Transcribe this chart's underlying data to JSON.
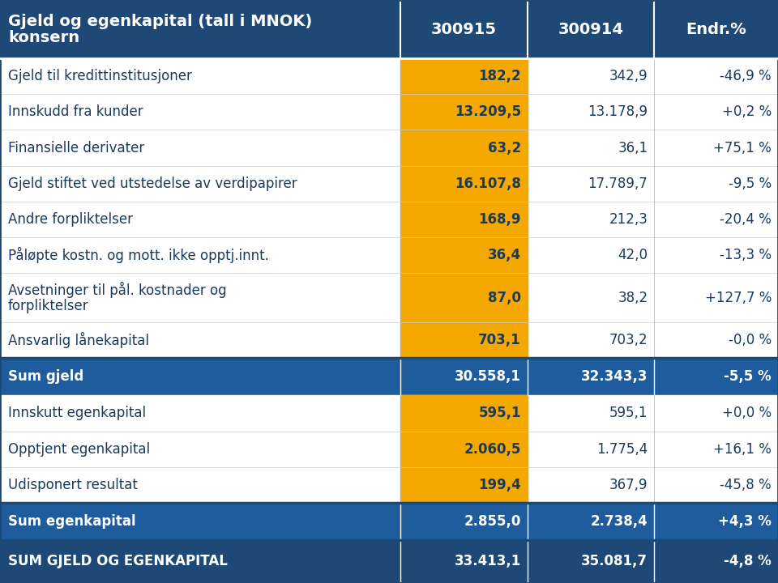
{
  "title_line1": "Gjeld og egenkapital (tall i MNOK)",
  "title_line2": "konsern",
  "col_headers": [
    "300915",
    "300914",
    "Endr.%"
  ],
  "rows": [
    {
      "label": "Gjeld til kredittinstitusjoner",
      "v1": "182,2",
      "v2": "342,9",
      "v3": "-46,9 %",
      "highlight": true,
      "summary": false,
      "bigsummary": false,
      "multiline": false
    },
    {
      "label": "Innskudd fra kunder",
      "v1": "13.209,5",
      "v2": "13.178,9",
      "v3": "+0,2 %",
      "highlight": true,
      "summary": false,
      "bigsummary": false,
      "multiline": false
    },
    {
      "label": "Finansielle derivater",
      "v1": "63,2",
      "v2": "36,1",
      "v3": "+75,1 %",
      "highlight": true,
      "summary": false,
      "bigsummary": false,
      "multiline": false
    },
    {
      "label": "Gjeld stiftet ved utstedelse av verdipapirer",
      "v1": "16.107,8",
      "v2": "17.789,7",
      "v3": "-9,5 %",
      "highlight": true,
      "summary": false,
      "bigsummary": false,
      "multiline": false
    },
    {
      "label": "Andre forpliktelser",
      "v1": "168,9",
      "v2": "212,3",
      "v3": "-20,4 %",
      "highlight": true,
      "summary": false,
      "bigsummary": false,
      "multiline": false
    },
    {
      "label": "Påløpte kostn. og mott. ikke opptj.innt.",
      "v1": "36,4",
      "v2": "42,0",
      "v3": "-13,3 %",
      "highlight": true,
      "summary": false,
      "bigsummary": false,
      "multiline": false
    },
    {
      "label": "Avsetninger til pål. kostnader og\nforpliktelser",
      "v1": "87,0",
      "v2": "38,2",
      "v3": "+127,7 %",
      "highlight": true,
      "summary": false,
      "bigsummary": false,
      "multiline": true
    },
    {
      "label": "Ansvarlig lånekapital",
      "v1": "703,1",
      "v2": "703,2",
      "v3": "-0,0 %",
      "highlight": true,
      "summary": false,
      "bigsummary": false,
      "multiline": false
    },
    {
      "label": "Sum gjeld",
      "v1": "30.558,1",
      "v2": "32.343,3",
      "v3": "-5,5 %",
      "highlight": false,
      "summary": true,
      "bigsummary": false,
      "multiline": false
    },
    {
      "label": "Innskutt egenkapital",
      "v1": "595,1",
      "v2": "595,1",
      "v3": "+0,0 %",
      "highlight": true,
      "summary": false,
      "bigsummary": false,
      "multiline": false
    },
    {
      "label": "Opptjent egenkapital",
      "v1": "2.060,5",
      "v2": "1.775,4",
      "v3": "+16,1 %",
      "highlight": true,
      "summary": false,
      "bigsummary": false,
      "multiline": false
    },
    {
      "label": "Udisponert resultat",
      "v1": "199,4",
      "v2": "367,9",
      "v3": "-45,8 %",
      "highlight": true,
      "summary": false,
      "bigsummary": false,
      "multiline": false
    },
    {
      "label": "Sum egenkapital",
      "v1": "2.855,0",
      "v2": "2.738,4",
      "v3": "+4,3 %",
      "highlight": false,
      "summary": true,
      "bigsummary": false,
      "multiline": false
    },
    {
      "label": "SUM GJELD OG EGENKAPITAL",
      "v1": "33.413,1",
      "v2": "35.081,7",
      "v3": "-4,8 %",
      "highlight": false,
      "summary": false,
      "bigsummary": true,
      "multiline": false
    }
  ],
  "header_bg": "#1e4976",
  "dark_blue": "#1e4976",
  "summary_bg": "#1e5c9e",
  "bigsummary_bg": "#1e4976",
  "gold": "#f5a800",
  "white": "#ffffff",
  "header_text": "#ffffff",
  "body_text": "#1a3a5c",
  "body_text_dark": "#1a1a2e",
  "summary_text": "#ffffff",
  "row_separator": "#cccccc",
  "col_separator": "#aaaaaa"
}
